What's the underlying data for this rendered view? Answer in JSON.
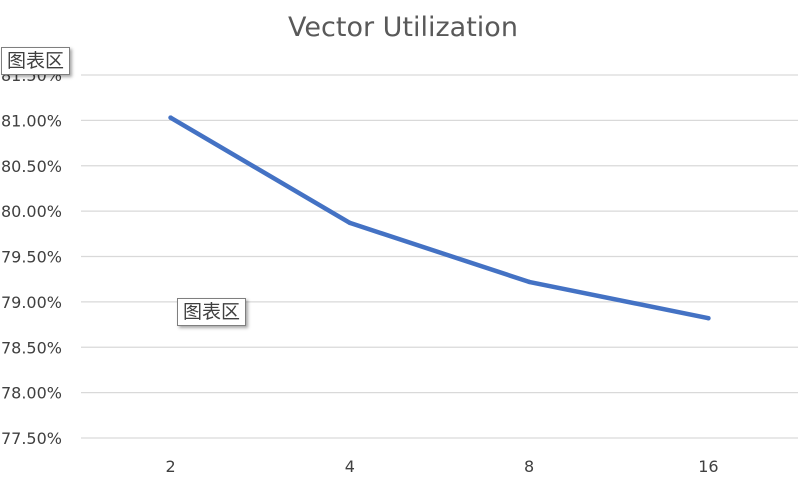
{
  "chart_data": {
    "type": "line",
    "title": "Vector Utilization",
    "xlabel": "",
    "ylabel": "",
    "categories": [
      "2",
      "4",
      "8",
      "16"
    ],
    "series": [
      {
        "values": [
          81.03,
          79.87,
          79.22,
          78.82
        ],
        "color": "#4472c4"
      }
    ],
    "ylim": [
      77.5,
      81.5
    ],
    "y_tick_labels": [
      "77.50%",
      "78.00%",
      "78.50%",
      "79.00%",
      "79.50%",
      "80.00%",
      "80.50%",
      "81.00%",
      "81.50%"
    ],
    "grid": true,
    "legend": "none"
  },
  "tooltips": {
    "chart_area_top": "图表区",
    "chart_area_plot": "图表区"
  }
}
